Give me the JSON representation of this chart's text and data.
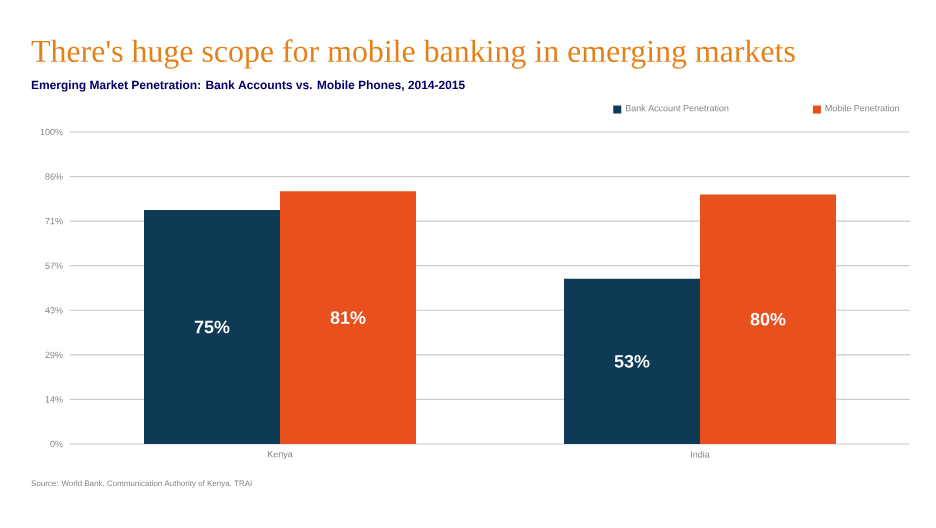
{
  "chart_data": {
    "type": "bar",
    "title": "There's huge scope for mobile banking in emerging markets",
    "subtitle": "Emerging Market Penetration: Bank Accounts vs. Mobile Phones, 2014-2015",
    "categories": [
      "Kenya",
      "India"
    ],
    "series": [
      {
        "name": "Bank Account Penetration",
        "color": "#0f3a56",
        "values": [
          75,
          53
        ],
        "value_labels": [
          "75%",
          "53%"
        ]
      },
      {
        "name": "Mobile Penetration",
        "color": "#e8501e",
        "values": [
          81,
          80
        ],
        "value_labels": [
          "81%",
          "80%"
        ]
      }
    ],
    "ylim": [
      0,
      100
    ],
    "yticks": [
      {
        "value": 0,
        "label": "0%"
      },
      {
        "value": 14.29,
        "label": "14%"
      },
      {
        "value": 28.57,
        "label": "29%"
      },
      {
        "value": 42.86,
        "label": "43%"
      },
      {
        "value": 57.14,
        "label": "57%"
      },
      {
        "value": 71.43,
        "label": "71%"
      },
      {
        "value": 85.71,
        "label": "86%"
      },
      {
        "value": 100,
        "label": "100%"
      }
    ],
    "grid": "y",
    "legend": "top right",
    "annotations": [
      "Source: World Bank, Communication Authority of Kenya, TRAI"
    ]
  }
}
